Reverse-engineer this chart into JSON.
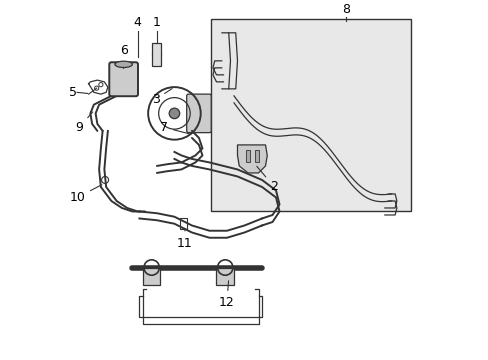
{
  "bg_color": "#ffffff",
  "line_color": "#333333",
  "label_color": "#000000",
  "diagram_bg": "#e8e8e8",
  "figsize": [
    4.89,
    3.6
  ],
  "dpi": 100
}
